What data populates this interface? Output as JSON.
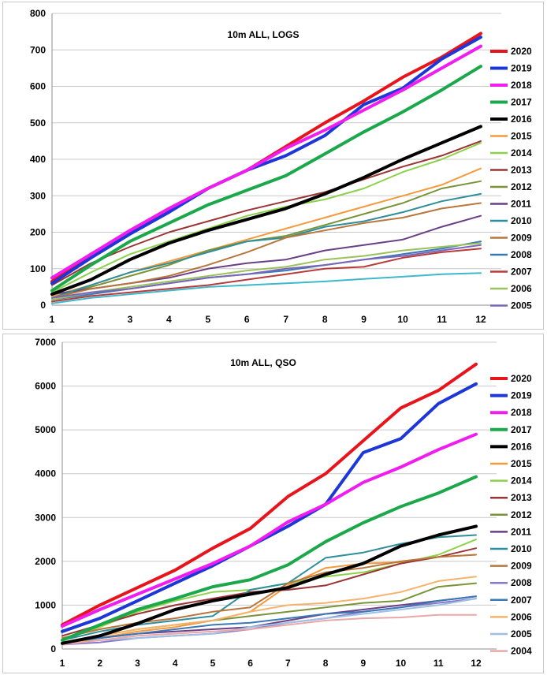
{
  "chart_data": [
    {
      "type": "line",
      "title": "10m ALL, LOGS",
      "xlabel": "",
      "ylabel": "",
      "x": [
        1,
        2,
        3,
        4,
        5,
        6,
        7,
        8,
        9,
        10,
        11,
        12
      ],
      "ylim": [
        0,
        800
      ],
      "yticks": [
        0,
        100,
        200,
        300,
        400,
        500,
        600,
        700,
        800
      ],
      "grid": true,
      "legend_position": "right",
      "series": [
        {
          "name": "2020",
          "color": "#e8141c",
          "bold": true,
          "values": [
            65,
            140,
            200,
            260,
            320,
            370,
            435,
            500,
            560,
            625,
            680,
            745
          ]
        },
        {
          "name": "2019",
          "color": "#1c36d8",
          "bold": true,
          "values": [
            60,
            130,
            195,
            255,
            320,
            370,
            410,
            465,
            550,
            595,
            675,
            735
          ]
        },
        {
          "name": "2018",
          "color": "#f01cf0",
          "bold": true,
          "values": [
            75,
            140,
            205,
            265,
            320,
            370,
            430,
            480,
            535,
            590,
            650,
            710
          ]
        },
        {
          "name": "2017",
          "color": "#1aa84a",
          "bold": true,
          "values": [
            40,
            110,
            175,
            225,
            275,
            315,
            355,
            415,
            475,
            530,
            590,
            655
          ]
        },
        {
          "name": "2016",
          "color": "#000000",
          "bold": true,
          "values": [
            30,
            70,
            125,
            170,
            205,
            235,
            265,
            305,
            350,
            400,
            445,
            490
          ]
        },
        {
          "name": "2015",
          "color": "#f59a3c",
          "bold": false,
          "values": [
            25,
            55,
            90,
            120,
            150,
            180,
            210,
            240,
            270,
            300,
            330,
            375
          ]
        },
        {
          "name": "2014",
          "color": "#8dd14a",
          "bold": false,
          "values": [
            35,
            90,
            140,
            175,
            210,
            245,
            270,
            290,
            320,
            365,
            400,
            445
          ]
        },
        {
          "name": "2013",
          "color": "#9b3434",
          "bold": false,
          "values": [
            55,
            115,
            160,
            200,
            230,
            260,
            285,
            310,
            345,
            380,
            410,
            450
          ]
        },
        {
          "name": "2012",
          "color": "#7a9338",
          "bold": false,
          "values": [
            20,
            50,
            80,
            110,
            150,
            175,
            190,
            220,
            250,
            280,
            320,
            340
          ]
        },
        {
          "name": "2011",
          "color": "#6a3f86",
          "bold": false,
          "values": [
            30,
            45,
            60,
            75,
            100,
            115,
            125,
            150,
            165,
            180,
            215,
            245
          ]
        },
        {
          "name": "2010",
          "color": "#2f8e9c",
          "bold": false,
          "values": [
            20,
            55,
            90,
            115,
            145,
            175,
            185,
            215,
            230,
            255,
            285,
            305
          ]
        },
        {
          "name": "2009",
          "color": "#b8763c",
          "bold": false,
          "values": [
            20,
            45,
            60,
            80,
            110,
            145,
            185,
            205,
            225,
            240,
            265,
            280
          ]
        },
        {
          "name": "2008",
          "color": "#3a78b6",
          "bold": false,
          "values": [
            15,
            30,
            45,
            60,
            75,
            85,
            95,
            110,
            125,
            140,
            155,
            175
          ]
        },
        {
          "name": "2007",
          "color": "#b83b3b",
          "bold": false,
          "values": [
            10,
            25,
            35,
            45,
            55,
            70,
            85,
            100,
            105,
            130,
            145,
            155
          ]
        },
        {
          "name": "2006",
          "color": "#9bc25a",
          "bold": false,
          "values": [
            15,
            35,
            50,
            65,
            80,
            95,
            105,
            125,
            135,
            150,
            160,
            170
          ]
        },
        {
          "name": "2005",
          "color": "#7a66b8",
          "bold": false,
          "values": [
            20,
            35,
            45,
            60,
            75,
            85,
            100,
            110,
            125,
            135,
            150,
            165
          ]
        },
        {
          "name": "",
          "color": "#3fb7cc",
          "bold": false,
          "values": [
            5,
            20,
            30,
            40,
            50,
            55,
            60,
            65,
            72,
            78,
            85,
            88
          ]
        }
      ]
    },
    {
      "type": "line",
      "title": "10m ALL, QSO",
      "xlabel": "",
      "ylabel": "",
      "x": [
        1,
        2,
        3,
        4,
        5,
        6,
        7,
        8,
        9,
        10,
        11,
        12
      ],
      "ylim": [
        0,
        7000
      ],
      "yticks": [
        0,
        1000,
        2000,
        3000,
        4000,
        5000,
        6000,
        7000
      ],
      "grid": true,
      "legend_position": "right",
      "series": [
        {
          "name": "2020",
          "color": "#e8141c",
          "bold": true,
          "values": [
            550,
            1000,
            1400,
            1800,
            2300,
            2750,
            3480,
            4000,
            4750,
            5500,
            5900,
            6500
          ]
        },
        {
          "name": "2019",
          "color": "#1c36d8",
          "bold": true,
          "values": [
            400,
            700,
            1100,
            1500,
            1900,
            2350,
            2800,
            3300,
            4480,
            4800,
            5600,
            6050
          ]
        },
        {
          "name": "2018",
          "color": "#f01cf0",
          "bold": true,
          "values": [
            520,
            900,
            1250,
            1600,
            1950,
            2350,
            2900,
            3300,
            3800,
            4150,
            4550,
            4900
          ]
        },
        {
          "name": "2017",
          "color": "#1aa84a",
          "bold": true,
          "values": [
            200,
            550,
            900,
            1150,
            1420,
            1580,
            1920,
            2450,
            2880,
            3250,
            3560,
            3930
          ]
        },
        {
          "name": "2016",
          "color": "#000000",
          "bold": true,
          "values": [
            130,
            300,
            580,
            900,
            1100,
            1250,
            1400,
            1700,
            1950,
            2350,
            2600,
            2800
          ]
        },
        {
          "name": "2015",
          "color": "#f59a3c",
          "bold": false,
          "values": [
            100,
            250,
            400,
            500,
            650,
            850,
            1450,
            1850,
            1950,
            1980,
            2100,
            2150
          ]
        },
        {
          "name": "2014",
          "color": "#8dd14a",
          "bold": false,
          "values": [
            200,
            500,
            850,
            1100,
            1300,
            1350,
            1500,
            1650,
            1750,
            1950,
            2150,
            2500
          ]
        },
        {
          "name": "2013",
          "color": "#9b3434",
          "bold": false,
          "values": [
            300,
            550,
            800,
            1000,
            1150,
            1300,
            1350,
            1450,
            1700,
            1950,
            2100,
            2300
          ]
        },
        {
          "name": "2012",
          "color": "#7a9338",
          "bold": false,
          "values": [
            150,
            300,
            450,
            550,
            650,
            750,
            850,
            950,
            1050,
            1100,
            1420,
            1500
          ]
        },
        {
          "name": "2011",
          "color": "#6a3f86",
          "bold": false,
          "values": [
            150,
            250,
            350,
            400,
            450,
            500,
            650,
            800,
            900,
            1000,
            1100,
            1200
          ]
        },
        {
          "name": "2010",
          "color": "#2f8e9c",
          "bold": false,
          "values": [
            200,
            400,
            550,
            650,
            750,
            1350,
            1500,
            2080,
            2200,
            2400,
            2550,
            2600
          ]
        },
        {
          "name": "2009",
          "color": "#b8763c",
          "bold": false,
          "values": [
            250,
            450,
            600,
            700,
            850,
            950,
            1500,
            1750,
            1850,
            2000,
            2100,
            2150
          ]
        },
        {
          "name": "2008",
          "color": "#8a78c8",
          "bold": false,
          "values": [
            100,
            150,
            250,
            300,
            350,
            450,
            600,
            700,
            850,
            950,
            1050,
            1150
          ]
        },
        {
          "name": "2007",
          "color": "#3a78b6",
          "bold": false,
          "values": [
            150,
            250,
            350,
            450,
            550,
            600,
            700,
            800,
            850,
            950,
            1100,
            1200
          ]
        },
        {
          "name": "2006",
          "color": "#f7b26a",
          "bold": false,
          "values": [
            150,
            300,
            450,
            550,
            650,
            850,
            1000,
            1050,
            1150,
            1300,
            1550,
            1650
          ]
        },
        {
          "name": "2005",
          "color": "#9ec0e4",
          "bold": false,
          "values": [
            100,
            200,
            250,
            300,
            350,
            500,
            600,
            700,
            800,
            900,
            1000,
            1150
          ]
        },
        {
          "name": "2004",
          "color": "#e8a8a8",
          "bold": false,
          "values": [
            100,
            200,
            300,
            350,
            400,
            450,
            550,
            650,
            700,
            720,
            780,
            780
          ]
        }
      ]
    }
  ]
}
